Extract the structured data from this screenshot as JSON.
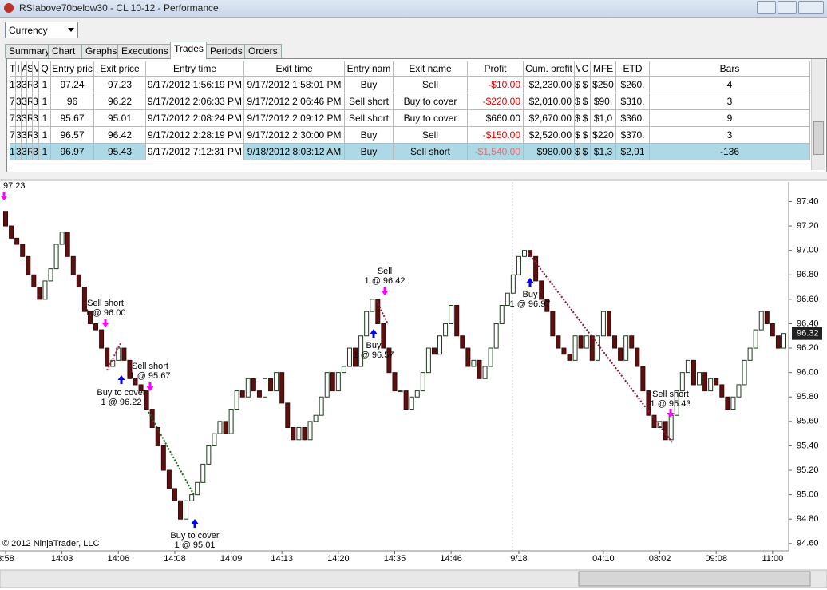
{
  "window": {
    "title": "RSIabove70below30 - CL 10-12 - Performance"
  },
  "toolbar": {
    "dropdown": "Currency"
  },
  "tabs": {
    "items": [
      "Summary",
      "Chart",
      "Graphs",
      "Executions",
      "Trades",
      "Periods",
      "Orders"
    ],
    "active": 4
  },
  "table": {
    "headers": [
      "T",
      "I",
      "A",
      "S",
      "M",
      "Q",
      "Entry pric",
      "Exit price",
      "Entry time",
      "Exit time",
      "Entry nam",
      "Exit name",
      "Profit",
      "Cum. profit",
      "M",
      "C",
      "MFE",
      "ETD",
      "Bars"
    ],
    "rows": [
      [
        "1",
        "3",
        "3",
        "R",
        "3",
        "1",
        "97.24",
        "97.23",
        "9/17/2012 1:56:19 PM",
        "9/17/2012 1:58:01 PM",
        "Buy",
        "Sell",
        "-$10.00",
        "$2,230.00",
        "$",
        "$",
        "$250",
        "$260.",
        "4"
      ],
      [
        "7",
        "3",
        "3",
        "R",
        "3",
        "1",
        "96",
        "96.22",
        "9/17/2012 2:06:33 PM",
        "9/17/2012 2:06:46 PM",
        "Sell short",
        "Buy to cover",
        "-$220.00",
        "$2,010.00",
        "$",
        "$",
        "$90.",
        "$310.",
        "3"
      ],
      [
        "7",
        "3",
        "3",
        "R",
        "3",
        "1",
        "95.67",
        "95.01",
        "9/17/2012 2:08:24 PM",
        "9/17/2012 2:09:12 PM",
        "Sell short",
        "Buy to cover",
        "$660.00",
        "$2,670.00",
        "$",
        "$",
        "$1,0",
        "$360.",
        "9"
      ],
      [
        "7",
        "3",
        "3",
        "R",
        "3",
        "1",
        "96.57",
        "96.42",
        "9/17/2012 2:28:19 PM",
        "9/17/2012 2:30:00 PM",
        "Buy",
        "Sell",
        "-$150.00",
        "$2,520.00",
        "$",
        "$",
        "$220",
        "$370.",
        "3"
      ],
      [
        "1",
        "3",
        "3",
        "R",
        "3",
        "1",
        "96.97",
        "95.43",
        "9/17/2012 7:12:31 PM",
        "9/18/2012 8:03:12 AM",
        "Buy",
        "Sell short",
        "-$1,540.00",
        "$980.00",
        "$",
        "$",
        "$1,3",
        "$2,91",
        "-136"
      ]
    ],
    "selected_row": 4
  },
  "chart": {
    "type": "candlestick",
    "opens": [
      97.32,
      97.2,
      97.1,
      97.05,
      96.95,
      96.8,
      96.7,
      96.6,
      96.75,
      96.85,
      97.05,
      97.15,
      96.95,
      96.8,
      96.7,
      96.5,
      96.4,
      96.35,
      96.2,
      96.05,
      96.1,
      96.2,
      96.1,
      95.95,
      95.9,
      95.85,
      95.7,
      95.55,
      95.4,
      95.2,
      95.05,
      94.95,
      94.8,
      94.95,
      95.0,
      95.1,
      95.25,
      95.4,
      95.5,
      95.6,
      95.5,
      95.7,
      95.85,
      95.8,
      95.95,
      95.85,
      95.8,
      95.95,
      95.85,
      96.0,
      95.75,
      95.55,
      95.45,
      95.55,
      95.45,
      95.6,
      95.65,
      95.8,
      96.0,
      95.85,
      96.0,
      96.05,
      96.2,
      96.05,
      96.3,
      96.5,
      96.6,
      96.4,
      96.2,
      96.0,
      95.85,
      95.85,
      95.7,
      95.8,
      95.85,
      96.0,
      96.2,
      96.15,
      96.3,
      96.4,
      96.55,
      96.3,
      96.2,
      96.05,
      96.1,
      95.95,
      96.05,
      96.2,
      96.4,
      96.55,
      96.65,
      96.8,
      96.95,
      97.0,
      96.95,
      96.75,
      96.6,
      96.5,
      96.3,
      96.2,
      96.15,
      96.1,
      96.3,
      96.2,
      96.3,
      96.1,
      96.3,
      96.5,
      96.3,
      96.2,
      96.1,
      96.3,
      96.2,
      96.05,
      95.85,
      95.65,
      95.55,
      95.6,
      95.45,
      95.65,
      95.85,
      96.0,
      96.1,
      95.9,
      96.0,
      95.85,
      95.95,
      95.9,
      95.8,
      95.7,
      95.8,
      95.9,
      96.1,
      96.2,
      96.35,
      96.5,
      96.4,
      96.3,
      96.2
    ],
    "closes": [
      97.2,
      97.1,
      97.05,
      96.95,
      96.8,
      96.7,
      96.6,
      96.75,
      96.85,
      97.05,
      97.15,
      96.95,
      96.8,
      96.7,
      96.5,
      96.4,
      96.35,
      96.2,
      96.05,
      96.1,
      96.2,
      96.1,
      95.95,
      95.9,
      95.85,
      95.7,
      95.55,
      95.4,
      95.2,
      95.05,
      94.95,
      94.8,
      94.95,
      95.0,
      95.1,
      95.25,
      95.4,
      95.5,
      95.6,
      95.5,
      95.7,
      95.85,
      95.8,
      95.95,
      95.85,
      95.8,
      95.95,
      95.85,
      96.0,
      95.75,
      95.55,
      95.45,
      95.55,
      95.45,
      95.6,
      95.65,
      95.8,
      96.0,
      95.85,
      96.0,
      96.05,
      96.2,
      96.05,
      96.3,
      96.5,
      96.6,
      96.4,
      96.2,
      96.0,
      95.85,
      95.85,
      95.7,
      95.8,
      95.85,
      96.0,
      96.2,
      96.15,
      96.3,
      96.4,
      96.55,
      96.3,
      96.2,
      96.05,
      96.1,
      95.95,
      96.05,
      96.2,
      96.4,
      96.55,
      96.65,
      96.8,
      96.95,
      97.0,
      96.95,
      96.75,
      96.6,
      96.5,
      96.3,
      96.2,
      96.15,
      96.1,
      96.3,
      96.2,
      96.3,
      96.1,
      96.3,
      96.5,
      96.3,
      96.2,
      96.1,
      96.3,
      96.2,
      96.05,
      95.85,
      95.65,
      95.55,
      95.6,
      95.45,
      95.65,
      95.85,
      96.0,
      96.1,
      95.9,
      96.0,
      95.85,
      95.95,
      95.9,
      95.8,
      95.7,
      95.8,
      95.9,
      96.1,
      96.2,
      96.35,
      96.5,
      96.4,
      96.3,
      96.2,
      96.32
    ],
    "times": [
      "3:58",
      null,
      null,
      null,
      null,
      null,
      null,
      null,
      null,
      null,
      "14:03",
      null,
      null,
      null,
      null,
      null,
      null,
      null,
      null,
      null,
      "14:06",
      null,
      null,
      null,
      null,
      null,
      null,
      null,
      null,
      null,
      "14:08",
      null,
      null,
      null,
      null,
      null,
      null,
      null,
      null,
      null,
      "14:09",
      null,
      null,
      null,
      null,
      null,
      null,
      null,
      null,
      "14:13",
      null,
      null,
      null,
      null,
      null,
      null,
      null,
      null,
      null,
      "14:20",
      null,
      null,
      null,
      null,
      null,
      null,
      null,
      null,
      null,
      "14:35",
      null,
      null,
      null,
      null,
      null,
      null,
      null,
      null,
      null,
      "14:46",
      null,
      null,
      null,
      null,
      null,
      null,
      null,
      null,
      null,
      null,
      null,
      "9/18",
      null,
      null,
      null,
      null,
      null,
      null,
      null,
      null,
      null,
      null,
      null,
      null,
      null,
      null,
      "04:10",
      null,
      null,
      null,
      null,
      null,
      null,
      null,
      null,
      null,
      "08:02",
      null,
      null,
      null,
      null,
      null,
      null,
      null,
      null,
      null,
      "09:08",
      null,
      null,
      null,
      null,
      null,
      null,
      null,
      null,
      null,
      "11:00",
      null,
      null
    ],
    "ylim": [
      94.54,
      97.56
    ],
    "yticks": [
      {
        "value": 97.4,
        "label": "97.40"
      },
      {
        "value": 97.2,
        "label": "97.20"
      },
      {
        "value": 97.0,
        "label": "97.00"
      },
      {
        "value": 96.8,
        "label": "96.80"
      },
      {
        "value": 96.6,
        "label": "96.60"
      },
      {
        "value": 96.4,
        "label": "96.40"
      },
      {
        "value": 96.2,
        "label": "96.20"
      },
      {
        "value": 96.0,
        "label": "96.00"
      },
      {
        "value": 95.8,
        "label": "95.80"
      },
      {
        "value": 95.6,
        "label": "95.60"
      },
      {
        "value": 95.4,
        "label": "95.40"
      },
      {
        "value": 95.2,
        "label": "95.20"
      },
      {
        "value": 95.0,
        "label": "95.00"
      },
      {
        "value": 94.8,
        "label": "94.80"
      },
      {
        "value": 94.6,
        "label": "94.60"
      }
    ],
    "last_price": 96.32,
    "top_label": "97.23",
    "annotations": [
      {
        "action": "Sell short",
        "detail": "1 @ 96.00"
      },
      {
        "action": "Buy to cover",
        "detail": "1 @ 96.22"
      },
      {
        "action": "Sell short",
        "detail": "1 @ 95.67"
      },
      {
        "action": "Buy to cover",
        "detail": "1 @ 95.01"
      },
      {
        "action": "Sell",
        "detail": "1 @ 96.42"
      },
      {
        "action": "Buy",
        "detail": "1 @ 96.57"
      },
      {
        "action": "Buy",
        "detail": "1 @ 96.97"
      },
      {
        "action": "Sell short",
        "detail": "1 @ 95.43"
      }
    ],
    "copyright": "© 2012 NinjaTrader, LLC"
  }
}
